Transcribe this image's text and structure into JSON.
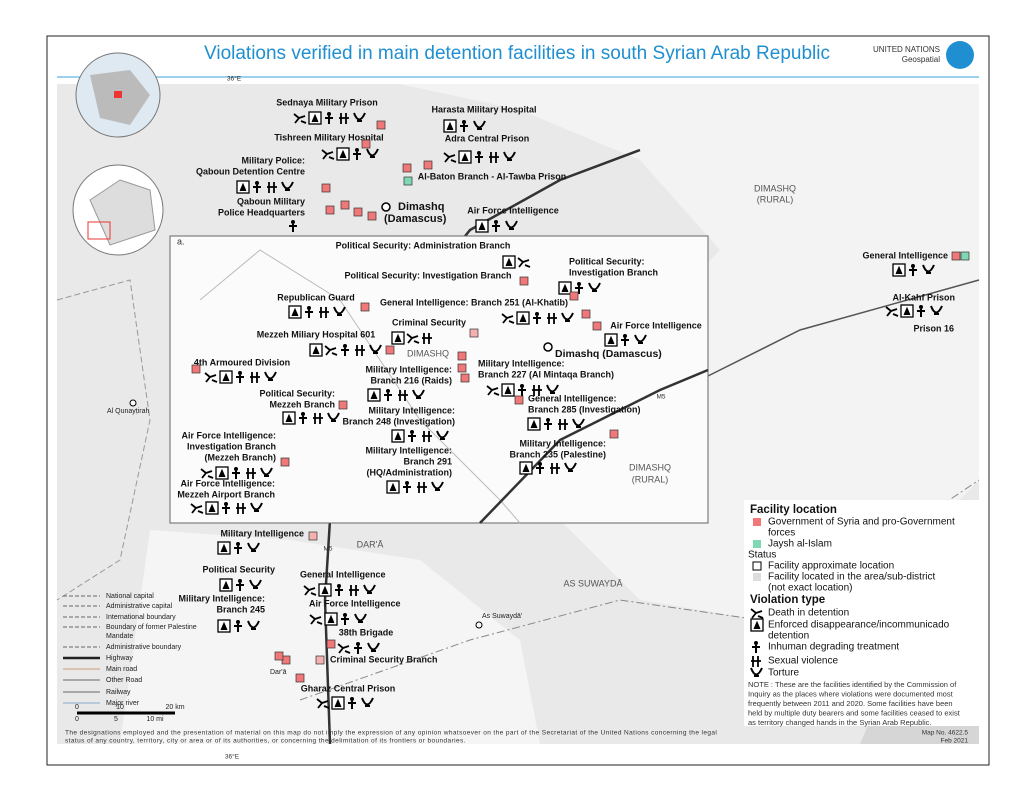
{
  "title": "Violations verified in main detention facilities in south Syrian Arab Republic",
  "org": [
    "UNITED NATIONS",
    "Geospatial"
  ],
  "coords": [
    "36°E",
    "36°E"
  ],
  "inset_label": "a.",
  "facilities": [
    [
      "Sednaya Military Prison"
    ],
    [
      "Harasta Military Hospital"
    ],
    [
      "Tishreen Military Hospital"
    ],
    [
      "Adra Central Prison"
    ],
    [
      "Military Police:",
      "Qaboun Detention Centre"
    ],
    [
      "Al-Baton Branch - Al-Tawba Prison"
    ],
    [
      "Qaboun Military",
      "Police Headquarters"
    ],
    [
      "Air Force Intelligence"
    ],
    [
      "General Intelligence"
    ],
    [
      "Al-Kahf Prison"
    ],
    [
      "Prison 16"
    ],
    [
      "Political Security: Administration Branch"
    ],
    [
      "Political Security: Investigation Branch"
    ],
    [
      "Political Security:",
      "Investigation Branch"
    ],
    [
      "Republican Guard"
    ],
    [
      "General Intelligence: Branch 251 (Al-Khatib)"
    ],
    [
      "Criminal Security"
    ],
    [
      "Air Force Intelligence"
    ],
    [
      "Mezzeh Miliary Hospital 601"
    ],
    [
      "4th Armoured Division"
    ],
    [
      "Military Intelligence:",
      "Branch 216 (Raids)"
    ],
    [
      "Military Intelligence:",
      "Branch 227 (Al Mintaqa Branch)"
    ],
    [
      "Political Security:",
      "Mezzeh Branch"
    ],
    [
      "Military Intelligence:",
      "Branch 248 (Investigation)"
    ],
    [
      "General Intelligence:",
      "Branch 285 (Investigation)"
    ],
    [
      "Air Force Intelligence:",
      "Investigation Branch",
      "(Mezzeh Branch)"
    ],
    [
      "Military Intelligence:",
      "Branch 291",
      "(HQ/Administration)"
    ],
    [
      "Military Intelligence:",
      "Branch 235 (Palestine)"
    ],
    [
      "Air Force Intelligence:",
      "Mezzeh Airport Branch"
    ],
    [
      "Military Intelligence"
    ],
    [
      "Political Security"
    ],
    [
      "Military Intelligence:",
      "Branch 245"
    ],
    [
      "General Intelligence"
    ],
    [
      "Air Force Intelligence"
    ],
    [
      "38th Brigade"
    ],
    [
      "Criminal Security Branch"
    ],
    [
      "Gharaz Central Prison"
    ]
  ],
  "capital": [
    "Dimashq",
    "(Damascus)"
  ],
  "capital_inset": "Dimashq (Damascus)",
  "places": [
    "DIMASHQ",
    "(RURAL)",
    "DIMASHQ",
    "DIMASHQ",
    "(RURAL)",
    "DAR'Ā",
    "AS SUWAYDĀ",
    "As Suwaydā'",
    "Al Qunayṭirah",
    "Dar'ā",
    "M5",
    "M5"
  ],
  "map_legend": [
    "National capital",
    "Administrative capital",
    "International boundary",
    "Boundary of former Palestine",
    "Mandate",
    "Administrative boundary",
    "Highway",
    "Main road",
    "Other Road",
    "Railway",
    "Major river"
  ],
  "scale": {
    "km": [
      "0",
      "10",
      "20 km"
    ],
    "mi": [
      "0",
      "5",
      "10 mi"
    ]
  },
  "legend": {
    "facility_title": "Facility location",
    "government": [
      "Government of Syria and pro-Government",
      "forces"
    ],
    "jaysh": "Jaysh al-Islam",
    "status_title": "Status",
    "approx": "Facility approximate location",
    "area": [
      "Facility located in the area/sub-district",
      "(not exact location)"
    ],
    "violation_title": "Violation type",
    "death": "Death in detention",
    "enforced": [
      "Enforced disappearance/incommunicado",
      "detention"
    ],
    "inhuman": "Inhuman degrading treatment",
    "sexual": "Sexual violence",
    "torture": "Torture",
    "note": [
      "NOTE : These are the facilities identified by the Commission of",
      "Inquiry as the places where violations were documented most",
      "frequently between 2011 and 2020. Some facilities have been",
      "held by multiple duty bearers and some facilities ceased to exist",
      "as territory changed hands in the Syrian Arab Republic."
    ]
  },
  "disclaimer": [
    "The designations employed and the presentation of material on this map do not imply the expression of any opinion whatsoever on the part of the Secretariat of the United Nations concerning the legal",
    "status of any country, territory, city or area or of its authorities, or concerning the delimitation of its frontiers or boundaries."
  ],
  "map_no": "Map No. 4622.5",
  "date": "Feb 2021"
}
